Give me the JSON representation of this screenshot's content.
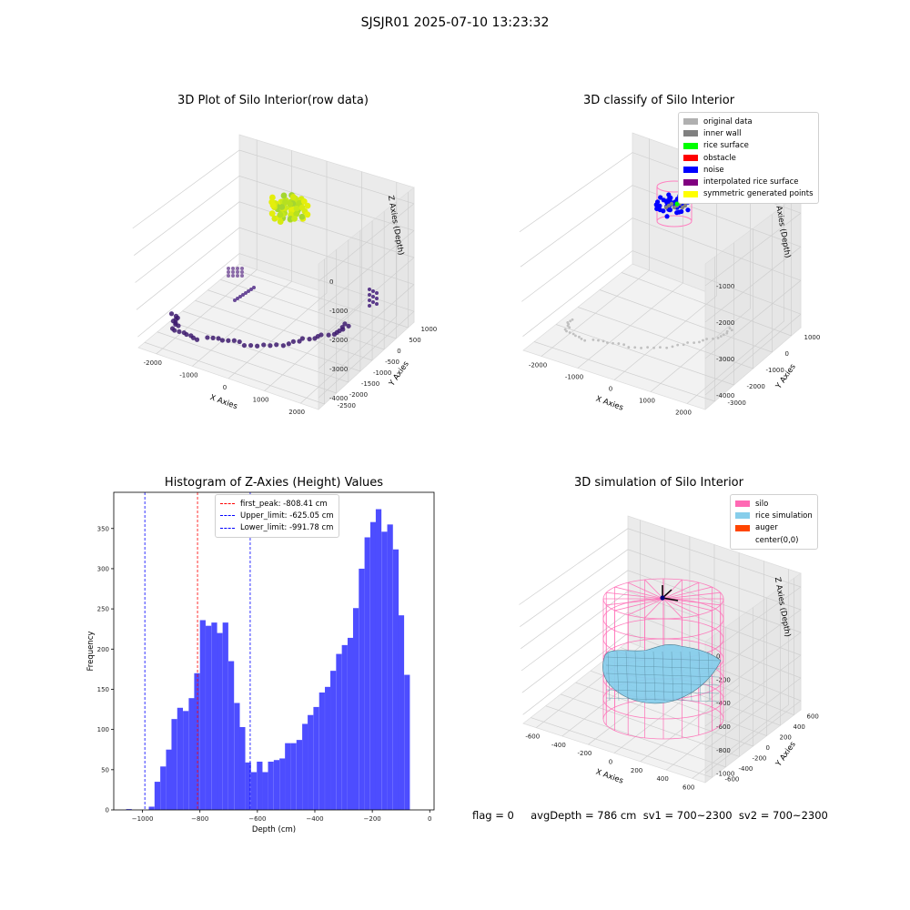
{
  "suptitle": "SJSJR01 2025-07-10 13:23:32",
  "panel_raw": {
    "title": "3D Plot of Silo Interior(row data)",
    "xlabel": "X Axies",
    "ylabel": "Y Axies",
    "zlabel": "Z Axies (Depth)",
    "xticks": [
      "-2000",
      "-1000",
      "0",
      "1000",
      "2000"
    ],
    "yticks": [
      "1000",
      "500",
      "0",
      "-500",
      "-1000",
      "-1500",
      "-2000",
      "-2500"
    ],
    "zticks": [
      "0",
      "-1000",
      "-2000",
      "-3000",
      "-4000"
    ]
  },
  "panel_classify": {
    "title": "3D classify of Silo Interior",
    "xlabel": "X Axies",
    "ylabel": "Y Axies",
    "zlabel": "Z Axies (Depth)",
    "xticks": [
      "-2000",
      "-1000",
      "0",
      "1000",
      "2000"
    ],
    "yticks": [
      "1000",
      "0",
      "-1000",
      "-2000",
      "-3000"
    ],
    "zticks": [
      "-1000",
      "-2000",
      "-3000",
      "-4000"
    ],
    "legend": [
      {
        "label": "original data",
        "color": "#b0b0b0"
      },
      {
        "label": "inner wall",
        "color": "#808080"
      },
      {
        "label": "rice surface",
        "color": "#00ff00"
      },
      {
        "label": "obstacle",
        "color": "#ff0000"
      },
      {
        "label": "noise",
        "color": "#0000ff"
      },
      {
        "label": "interpolated rice surface",
        "color": "#800080"
      },
      {
        "label": "symmetric generated points",
        "color": "#ffff00"
      }
    ]
  },
  "panel_sim": {
    "title": "3D simulation of Silo Interior",
    "xlabel": "X Axies",
    "ylabel": "Y Axies",
    "zlabel": "Z Axies (Depth)",
    "xticks": [
      "-600",
      "-400",
      "-200",
      "0",
      "200",
      "400",
      "600"
    ],
    "yticks": [
      "600",
      "400",
      "200",
      "0",
      "-200",
      "-400",
      "-600"
    ],
    "zticks": [
      "0",
      "-200",
      "-400",
      "-600",
      "-800",
      "-1000"
    ],
    "legend": [
      {
        "label": "silo",
        "color": "#ff69b4"
      },
      {
        "label": "rice simulation",
        "color": "#87ceeb"
      },
      {
        "label": "auger",
        "color": "#ff4500"
      },
      {
        "label": "center(0,0)",
        "color": ""
      }
    ]
  },
  "footer": "flag = 0     avgDepth = 786 cm  sv1 = 700~2300  sv2 = 700~2300",
  "chart_data": {
    "type": "bar",
    "title": "Histogram of Z-Axies (Height) Values",
    "xlabel": "Depth (cm)",
    "ylabel": "Frequency",
    "xlim": [
      -1100,
      15
    ],
    "ylim": [
      0,
      395
    ],
    "xticks": [
      -1000,
      -800,
      -600,
      -400,
      -200,
      0
    ],
    "yticks": [
      0,
      50,
      100,
      150,
      200,
      250,
      300,
      350
    ],
    "bin_width": 19.75,
    "bins_start": [
      -1057,
      -1037,
      -1017,
      -997,
      -978,
      -958,
      -938,
      -918,
      -899,
      -879,
      -859,
      -839,
      -820,
      -800,
      -780,
      -760,
      -741,
      -721,
      -701,
      -681,
      -662,
      -642,
      -622,
      -602,
      -583,
      -563,
      -543,
      -523,
      -504,
      -484,
      -464,
      -444,
      -425,
      -405,
      -385,
      -365,
      -346,
      -326,
      -306,
      -286,
      -267,
      -247,
      -227,
      -207,
      -188,
      -168,
      -148,
      -128,
      -109,
      -89,
      -69,
      -49
    ],
    "values": [
      1,
      0,
      0,
      0,
      4,
      35,
      54,
      75,
      113,
      127,
      123,
      139,
      170,
      236,
      229,
      233,
      220,
      233,
      185,
      133,
      103,
      59,
      47,
      60,
      47,
      60,
      62,
      64,
      83,
      83,
      87,
      107,
      118,
      128,
      146,
      153,
      173,
      194,
      205,
      214,
      251,
      300,
      339,
      358,
      374,
      346,
      355,
      324,
      242,
      168,
      0,
      0
    ],
    "vlines": [
      {
        "label": "first_peak: -808.41 cm",
        "x": -808.41,
        "color": "#ff0000"
      },
      {
        "label": "Upper_limit: -625.05 cm",
        "x": -625.05,
        "color": "#0000ff"
      },
      {
        "label": "Lower_limit: -991.78 cm",
        "x": -991.78,
        "color": "#0000ff"
      }
    ],
    "bar_color": "#4d4dff"
  }
}
